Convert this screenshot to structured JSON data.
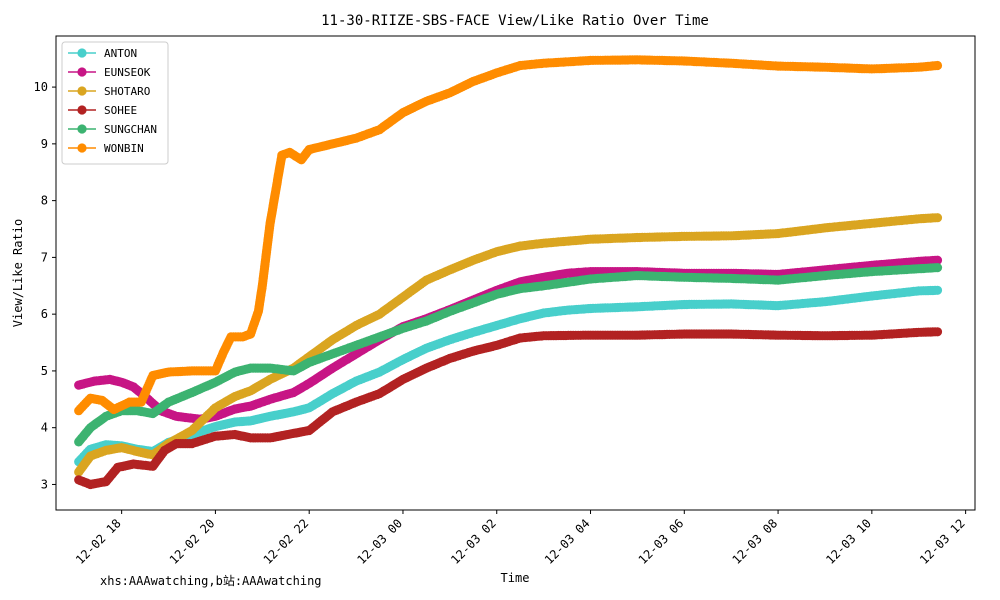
{
  "chart_data": {
    "type": "line",
    "title": "11-30-RIIZE-SBS-FACE View/Like Ratio Over Time",
    "xlabel": "Time",
    "ylabel": "View/Like Ratio",
    "xlim": [
      "2024-12-02T16:36",
      "2024-12-03T12:12"
    ],
    "ylim": [
      2.55,
      10.9
    ],
    "x_ticks": [
      {
        "label": "12-02 18",
        "t": "2024-12-02T18:00"
      },
      {
        "label": "12-02 20",
        "t": "2024-12-02T20:00"
      },
      {
        "label": "12-02 22",
        "t": "2024-12-02T22:00"
      },
      {
        "label": "12-03 00",
        "t": "2024-12-03T00:00"
      },
      {
        "label": "12-03 02",
        "t": "2024-12-03T02:00"
      },
      {
        "label": "12-03 04",
        "t": "2024-12-03T04:00"
      },
      {
        "label": "12-03 06",
        "t": "2024-12-03T06:00"
      },
      {
        "label": "12-03 08",
        "t": "2024-12-03T08:00"
      },
      {
        "label": "12-03 10",
        "t": "2024-12-03T10:00"
      },
      {
        "label": "12-03 12",
        "t": "2024-12-03T12:00"
      }
    ],
    "y_ticks": [
      3,
      4,
      5,
      6,
      7,
      8,
      9,
      10
    ],
    "legend_position": "top-left",
    "grid": false,
    "series": [
      {
        "name": "ANTON",
        "color": "#48cfcb",
        "points": [
          [
            "2024-12-02T17:05",
            3.4
          ],
          [
            "2024-12-02T17:20",
            3.62
          ],
          [
            "2024-12-02T17:40",
            3.7
          ],
          [
            "2024-12-02T18:00",
            3.68
          ],
          [
            "2024-12-02T18:20",
            3.62
          ],
          [
            "2024-12-02T18:40",
            3.58
          ],
          [
            "2024-12-02T19:00",
            3.74
          ],
          [
            "2024-12-02T19:30",
            3.88
          ],
          [
            "2024-12-02T20:00",
            4.02
          ],
          [
            "2024-12-02T20:25",
            4.1
          ],
          [
            "2024-12-02T20:45",
            4.12
          ],
          [
            "2024-12-02T21:10",
            4.2
          ],
          [
            "2024-12-02T21:40",
            4.28
          ],
          [
            "2024-12-02T22:00",
            4.35
          ],
          [
            "2024-12-02T22:30",
            4.6
          ],
          [
            "2024-12-02T23:00",
            4.82
          ],
          [
            "2024-12-02T23:30",
            4.98
          ],
          [
            "2024-12-03T00:00",
            5.2
          ],
          [
            "2024-12-03T00:30",
            5.4
          ],
          [
            "2024-12-03T01:00",
            5.55
          ],
          [
            "2024-12-03T01:30",
            5.68
          ],
          [
            "2024-12-03T02:00",
            5.8
          ],
          [
            "2024-12-03T02:30",
            5.92
          ],
          [
            "2024-12-03T03:00",
            6.02
          ],
          [
            "2024-12-03T03:30",
            6.07
          ],
          [
            "2024-12-03T04:00",
            6.1
          ],
          [
            "2024-12-03T05:00",
            6.13
          ],
          [
            "2024-12-03T06:00",
            6.17
          ],
          [
            "2024-12-03T07:00",
            6.18
          ],
          [
            "2024-12-03T08:00",
            6.15
          ],
          [
            "2024-12-03T09:00",
            6.22
          ],
          [
            "2024-12-03T10:00",
            6.32
          ],
          [
            "2024-12-03T11:00",
            6.41
          ],
          [
            "2024-12-03T11:24",
            6.42
          ]
        ]
      },
      {
        "name": "EUNSEOK",
        "color": "#c71585",
        "points": [
          [
            "2024-12-02T17:05",
            4.75
          ],
          [
            "2024-12-02T17:25",
            4.82
          ],
          [
            "2024-12-02T17:45",
            4.85
          ],
          [
            "2024-12-02T18:00",
            4.8
          ],
          [
            "2024-12-02T18:15",
            4.72
          ],
          [
            "2024-12-02T18:30",
            4.55
          ],
          [
            "2024-12-02T18:50",
            4.3
          ],
          [
            "2024-12-02T19:10",
            4.2
          ],
          [
            "2024-12-02T19:40",
            4.15
          ],
          [
            "2024-12-02T20:00",
            4.2
          ],
          [
            "2024-12-02T20:25",
            4.33
          ],
          [
            "2024-12-02T20:45",
            4.38
          ],
          [
            "2024-12-02T21:10",
            4.5
          ],
          [
            "2024-12-02T21:40",
            4.62
          ],
          [
            "2024-12-02T22:00",
            4.78
          ],
          [
            "2024-12-02T22:30",
            5.05
          ],
          [
            "2024-12-02T23:00",
            5.3
          ],
          [
            "2024-12-02T23:30",
            5.55
          ],
          [
            "2024-12-03T00:00",
            5.78
          ],
          [
            "2024-12-03T00:30",
            5.92
          ],
          [
            "2024-12-03T01:00",
            6.08
          ],
          [
            "2024-12-03T01:30",
            6.25
          ],
          [
            "2024-12-03T02:00",
            6.42
          ],
          [
            "2024-12-03T02:30",
            6.57
          ],
          [
            "2024-12-03T03:00",
            6.65
          ],
          [
            "2024-12-03T03:30",
            6.72
          ],
          [
            "2024-12-03T04:00",
            6.75
          ],
          [
            "2024-12-03T05:00",
            6.75
          ],
          [
            "2024-12-03T06:00",
            6.72
          ],
          [
            "2024-12-03T07:00",
            6.72
          ],
          [
            "2024-12-03T08:00",
            6.7
          ],
          [
            "2024-12-03T09:00",
            6.78
          ],
          [
            "2024-12-03T10:00",
            6.86
          ],
          [
            "2024-12-03T11:00",
            6.93
          ],
          [
            "2024-12-03T11:24",
            6.95
          ]
        ]
      },
      {
        "name": "SHOTARO",
        "color": "#daa520",
        "points": [
          [
            "2024-12-02T17:05",
            3.22
          ],
          [
            "2024-12-02T17:20",
            3.5
          ],
          [
            "2024-12-02T17:40",
            3.6
          ],
          [
            "2024-12-02T18:00",
            3.65
          ],
          [
            "2024-12-02T18:20",
            3.58
          ],
          [
            "2024-12-02T18:40",
            3.52
          ],
          [
            "2024-12-02T19:00",
            3.72
          ],
          [
            "2024-12-02T19:30",
            3.95
          ],
          [
            "2024-12-02T20:00",
            4.35
          ],
          [
            "2024-12-02T20:25",
            4.55
          ],
          [
            "2024-12-02T20:45",
            4.65
          ],
          [
            "2024-12-02T21:10",
            4.85
          ],
          [
            "2024-12-02T21:40",
            5.05
          ],
          [
            "2024-12-02T22:00",
            5.25
          ],
          [
            "2024-12-02T22:30",
            5.55
          ],
          [
            "2024-12-02T23:00",
            5.8
          ],
          [
            "2024-12-02T23:30",
            6.0
          ],
          [
            "2024-12-03T00:00",
            6.3
          ],
          [
            "2024-12-03T00:30",
            6.6
          ],
          [
            "2024-12-03T01:00",
            6.78
          ],
          [
            "2024-12-03T01:30",
            6.95
          ],
          [
            "2024-12-03T02:00",
            7.1
          ],
          [
            "2024-12-03T02:30",
            7.2
          ],
          [
            "2024-12-03T03:00",
            7.25
          ],
          [
            "2024-12-03T04:00",
            7.32
          ],
          [
            "2024-12-03T05:00",
            7.35
          ],
          [
            "2024-12-03T06:00",
            7.37
          ],
          [
            "2024-12-03T07:00",
            7.38
          ],
          [
            "2024-12-03T08:00",
            7.42
          ],
          [
            "2024-12-03T09:00",
            7.52
          ],
          [
            "2024-12-03T10:00",
            7.6
          ],
          [
            "2024-12-03T11:00",
            7.68
          ],
          [
            "2024-12-03T11:24",
            7.7
          ]
        ]
      },
      {
        "name": "SOHEE",
        "color": "#b22222",
        "points": [
          [
            "2024-12-02T17:05",
            3.08
          ],
          [
            "2024-12-02T17:20",
            3.0
          ],
          [
            "2024-12-02T17:40",
            3.05
          ],
          [
            "2024-12-02T17:55",
            3.3
          ],
          [
            "2024-12-02T18:15",
            3.36
          ],
          [
            "2024-12-02T18:40",
            3.32
          ],
          [
            "2024-12-02T18:55",
            3.6
          ],
          [
            "2024-12-02T19:10",
            3.72
          ],
          [
            "2024-12-02T19:30",
            3.72
          ],
          [
            "2024-12-02T20:00",
            3.85
          ],
          [
            "2024-12-02T20:25",
            3.88
          ],
          [
            "2024-12-02T20:45",
            3.82
          ],
          [
            "2024-12-02T21:10",
            3.82
          ],
          [
            "2024-12-02T21:40",
            3.9
          ],
          [
            "2024-12-02T22:00",
            3.95
          ],
          [
            "2024-12-02T22:30",
            4.28
          ],
          [
            "2024-12-02T23:00",
            4.45
          ],
          [
            "2024-12-02T23:30",
            4.6
          ],
          [
            "2024-12-03T00:00",
            4.85
          ],
          [
            "2024-12-03T00:30",
            5.05
          ],
          [
            "2024-12-03T01:00",
            5.22
          ],
          [
            "2024-12-03T01:30",
            5.35
          ],
          [
            "2024-12-03T02:00",
            5.45
          ],
          [
            "2024-12-03T02:30",
            5.58
          ],
          [
            "2024-12-03T03:00",
            5.62
          ],
          [
            "2024-12-03T04:00",
            5.63
          ],
          [
            "2024-12-03T05:00",
            5.63
          ],
          [
            "2024-12-03T06:00",
            5.65
          ],
          [
            "2024-12-03T07:00",
            5.65
          ],
          [
            "2024-12-03T08:00",
            5.63
          ],
          [
            "2024-12-03T09:00",
            5.62
          ],
          [
            "2024-12-03T10:00",
            5.63
          ],
          [
            "2024-12-03T11:00",
            5.68
          ],
          [
            "2024-12-03T11:24",
            5.69
          ]
        ]
      },
      {
        "name": "SUNGCHAN",
        "color": "#3cb371",
        "points": [
          [
            "2024-12-02T17:05",
            3.75
          ],
          [
            "2024-12-02T17:20",
            4.0
          ],
          [
            "2024-12-02T17:40",
            4.2
          ],
          [
            "2024-12-02T18:00",
            4.3
          ],
          [
            "2024-12-02T18:20",
            4.3
          ],
          [
            "2024-12-02T18:40",
            4.25
          ],
          [
            "2024-12-02T19:00",
            4.45
          ],
          [
            "2024-12-02T19:30",
            4.62
          ],
          [
            "2024-12-02T20:00",
            4.8
          ],
          [
            "2024-12-02T20:25",
            4.98
          ],
          [
            "2024-12-02T20:45",
            5.05
          ],
          [
            "2024-12-02T21:10",
            5.05
          ],
          [
            "2024-12-02T21:40",
            5.0
          ],
          [
            "2024-12-02T22:00",
            5.15
          ],
          [
            "2024-12-02T22:30",
            5.3
          ],
          [
            "2024-12-02T23:00",
            5.45
          ],
          [
            "2024-12-02T23:30",
            5.6
          ],
          [
            "2024-12-03T00:00",
            5.75
          ],
          [
            "2024-12-03T00:30",
            5.88
          ],
          [
            "2024-12-03T01:00",
            6.05
          ],
          [
            "2024-12-03T01:30",
            6.2
          ],
          [
            "2024-12-03T02:00",
            6.35
          ],
          [
            "2024-12-03T02:30",
            6.45
          ],
          [
            "2024-12-03T03:00",
            6.5
          ],
          [
            "2024-12-03T04:00",
            6.62
          ],
          [
            "2024-12-03T05:00",
            6.68
          ],
          [
            "2024-12-03T06:00",
            6.65
          ],
          [
            "2024-12-03T07:00",
            6.63
          ],
          [
            "2024-12-03T08:00",
            6.6
          ],
          [
            "2024-12-03T09:00",
            6.68
          ],
          [
            "2024-12-03T10:00",
            6.75
          ],
          [
            "2024-12-03T11:00",
            6.8
          ],
          [
            "2024-12-03T11:24",
            6.82
          ]
        ]
      },
      {
        "name": "WONBIN",
        "color": "#ff8c00",
        "points": [
          [
            "2024-12-02T17:05",
            4.3
          ],
          [
            "2024-12-02T17:20",
            4.52
          ],
          [
            "2024-12-02T17:35",
            4.48
          ],
          [
            "2024-12-02T17:50",
            4.32
          ],
          [
            "2024-12-02T18:10",
            4.45
          ],
          [
            "2024-12-02T18:25",
            4.45
          ],
          [
            "2024-12-02T18:40",
            4.92
          ],
          [
            "2024-12-02T19:00",
            4.98
          ],
          [
            "2024-12-02T19:30",
            5.0
          ],
          [
            "2024-12-02T20:00",
            5.0
          ],
          [
            "2024-12-02T20:10",
            5.32
          ],
          [
            "2024-12-02T20:20",
            5.6
          ],
          [
            "2024-12-02T20:35",
            5.6
          ],
          [
            "2024-12-02T20:45",
            5.65
          ],
          [
            "2024-12-02T20:55",
            6.05
          ],
          [
            "2024-12-02T21:00",
            6.5
          ],
          [
            "2024-12-02T21:05",
            7.05
          ],
          [
            "2024-12-02T21:10",
            7.6
          ],
          [
            "2024-12-02T21:15",
            8.0
          ],
          [
            "2024-12-02T21:20",
            8.4
          ],
          [
            "2024-12-02T21:25",
            8.8
          ],
          [
            "2024-12-02T21:35",
            8.85
          ],
          [
            "2024-12-02T21:50",
            8.72
          ],
          [
            "2024-12-02T22:00",
            8.9
          ],
          [
            "2024-12-02T22:30",
            9.0
          ],
          [
            "2024-12-02T23:00",
            9.1
          ],
          [
            "2024-12-02T23:30",
            9.25
          ],
          [
            "2024-12-03T00:00",
            9.55
          ],
          [
            "2024-12-03T00:30",
            9.75
          ],
          [
            "2024-12-03T01:00",
            9.9
          ],
          [
            "2024-12-03T01:30",
            10.1
          ],
          [
            "2024-12-03T02:00",
            10.25
          ],
          [
            "2024-12-03T02:30",
            10.38
          ],
          [
            "2024-12-03T03:00",
            10.42
          ],
          [
            "2024-12-03T04:00",
            10.47
          ],
          [
            "2024-12-03T05:00",
            10.48
          ],
          [
            "2024-12-03T06:00",
            10.46
          ],
          [
            "2024-12-03T07:00",
            10.42
          ],
          [
            "2024-12-03T08:00",
            10.37
          ],
          [
            "2024-12-03T09:00",
            10.35
          ],
          [
            "2024-12-03T10:00",
            10.32
          ],
          [
            "2024-12-03T11:00",
            10.35
          ],
          [
            "2024-12-03T11:24",
            10.38
          ]
        ]
      }
    ]
  },
  "watermark": "xhs:AAAwatching,b站:AAAwatching"
}
